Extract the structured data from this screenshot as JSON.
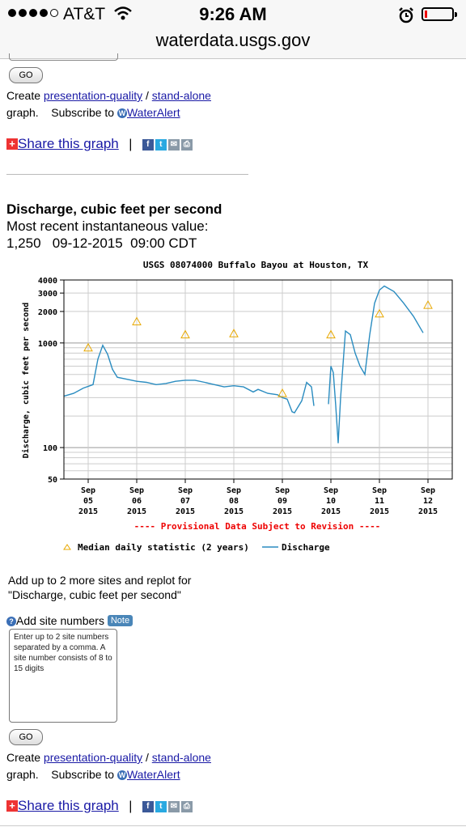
{
  "status_bar": {
    "carrier": "AT&T",
    "time": "9:26 AM",
    "url": "waterdata.usgs.gov",
    "battery_level": 0.1
  },
  "top_block": {
    "go_label": "GO",
    "create_prefix": "Create ",
    "presentation_link": "presentation-quality",
    "slash": " / ",
    "standalone_link": "stand-alone",
    "graph_text": "graph.",
    "subscribe_text": "Subscribe to",
    "wateralert_link": "WaterAlert",
    "share_link": "Share this graph",
    "separator": "|"
  },
  "discharge": {
    "title": "Discharge, cubic feet per second",
    "recent_label": "Most recent instantaneous value:",
    "value": "1,250",
    "date": "09-12-2015",
    "time": "09:00 CDT"
  },
  "chart_data": {
    "type": "line",
    "title": "USGS 08074000 Buffalo Bayou at Houston, TX",
    "ylabel": "Discharge, cubic feet per second",
    "yscale": "log",
    "ylim": [
      50,
      4000
    ],
    "yticks": [
      "50",
      "100",
      "1000",
      "2000",
      "3000",
      "4000"
    ],
    "xlim": [
      4.5,
      12.5
    ],
    "xticks": [
      {
        "day": 5,
        "label": [
          "Sep",
          "05",
          "2015"
        ]
      },
      {
        "day": 6,
        "label": [
          "Sep",
          "06",
          "2015"
        ]
      },
      {
        "day": 7,
        "label": [
          "Sep",
          "07",
          "2015"
        ]
      },
      {
        "day": 8,
        "label": [
          "Sep",
          "08",
          "2015"
        ]
      },
      {
        "day": 9,
        "label": [
          "Sep",
          "09",
          "2015"
        ]
      },
      {
        "day": 10,
        "label": [
          "Sep",
          "10",
          "2015"
        ]
      },
      {
        "day": 11,
        "label": [
          "Sep",
          "11",
          "2015"
        ]
      },
      {
        "day": 12,
        "label": [
          "Sep",
          "12",
          "2015"
        ]
      }
    ],
    "provisional_note": "---- Provisional Data Subject to Revision ----",
    "series": [
      {
        "name": "Discharge",
        "color": "#2a8cc0",
        "segments": [
          [
            [
              4.5,
              310
            ],
            [
              4.7,
              330
            ],
            [
              4.9,
              370
            ],
            [
              5.1,
              400
            ],
            [
              5.2,
              700
            ],
            [
              5.3,
              950
            ],
            [
              5.4,
              780
            ],
            [
              5.5,
              560
            ],
            [
              5.6,
              470
            ],
            [
              5.8,
              450
            ],
            [
              6.0,
              430
            ],
            [
              6.2,
              420
            ],
            [
              6.4,
              400
            ],
            [
              6.6,
              410
            ],
            [
              6.8,
              430
            ],
            [
              7.0,
              440
            ],
            [
              7.2,
              440
            ],
            [
              7.4,
              420
            ],
            [
              7.6,
              400
            ],
            [
              7.8,
              380
            ],
            [
              8.0,
              390
            ],
            [
              8.2,
              380
            ],
            [
              8.4,
              340
            ],
            [
              8.5,
              360
            ],
            [
              8.7,
              330
            ],
            [
              8.9,
              320
            ],
            [
              9.0,
              300
            ],
            [
              9.1,
              290
            ],
            [
              9.2,
              220
            ],
            [
              9.25,
              215
            ],
            [
              9.4,
              280
            ],
            [
              9.5,
              420
            ],
            [
              9.6,
              380
            ],
            [
              9.65,
              250
            ]
          ],
          [
            [
              9.95,
              260
            ],
            [
              10.0,
              600
            ],
            [
              10.05,
              520
            ],
            [
              10.1,
              250
            ],
            [
              10.15,
              110
            ],
            [
              10.2,
              300
            ],
            [
              10.3,
              1300
            ],
            [
              10.4,
              1200
            ],
            [
              10.5,
              800
            ],
            [
              10.6,
              600
            ],
            [
              10.7,
              500
            ],
            [
              10.8,
              1200
            ],
            [
              10.9,
              2400
            ],
            [
              11.0,
              3200
            ],
            [
              11.1,
              3500
            ],
            [
              11.3,
              3100
            ],
            [
              11.5,
              2400
            ],
            [
              11.7,
              1800
            ],
            [
              11.9,
              1250
            ]
          ]
        ]
      }
    ],
    "median_daily": {
      "name": "Median daily statistic (2 years)",
      "color": "#e8a800",
      "points": [
        [
          5,
          900
        ],
        [
          6,
          1600
        ],
        [
          7,
          1200
        ],
        [
          8,
          1230
        ],
        [
          9,
          330
        ],
        [
          10,
          1200
        ],
        [
          11,
          1900
        ],
        [
          12,
          2300
        ]
      ]
    },
    "legend": [
      "Median daily statistic (2 years)",
      "Discharge"
    ],
    "grid": true,
    "legend_placement": "bottom"
  },
  "replot": {
    "line1": "Add up to 2 more sites and replot for",
    "line2": "\"Discharge, cubic feet per second\"",
    "add_label": "Add site numbers",
    "note_badge": "Note",
    "placeholder": "Enter up to 2 site numbers separated by a comma. A site number consists of 8 to 15 digits"
  },
  "bottom_block": {
    "go_label": "GO",
    "create_prefix": "Create ",
    "presentation_link": "presentation-quality",
    "slash": " / ",
    "standalone_link": "stand-alone",
    "graph_text": "graph.",
    "subscribe_text": "Subscribe to",
    "wateralert_link": "WaterAlert",
    "share_link": "Share this graph",
    "separator": "|"
  }
}
